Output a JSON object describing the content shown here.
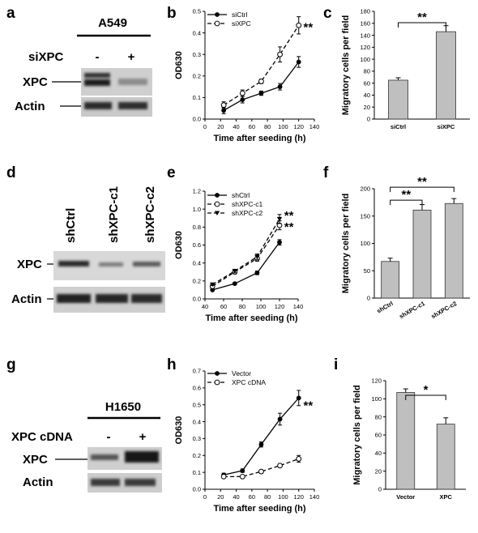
{
  "panels": {
    "a": {
      "letter": "a",
      "cell_line": "A549",
      "treatment_label": "siXPC",
      "lane_marks": [
        "-",
        "+"
      ],
      "blots": [
        "XPC",
        "Actin"
      ]
    },
    "d": {
      "letter": "d",
      "lanes": [
        "shCtrl",
        "shXPC-c1",
        "shXPC-c2"
      ],
      "blots": [
        "XPC",
        "Actin"
      ]
    },
    "g": {
      "letter": "g",
      "cell_line": "H1650",
      "treatment_label": "XPC cDNA",
      "lane_marks": [
        "-",
        "+"
      ],
      "blots": [
        "XPC",
        "Actin"
      ]
    }
  },
  "chart_data": [
    {
      "panel": "b",
      "type": "line",
      "xlabel": "Time after seeding (h)",
      "ylabel": "OD630",
      "xlim": [
        0,
        140
      ],
      "ylim": [
        0,
        0.5
      ],
      "xticks": [
        0,
        20,
        40,
        60,
        80,
        100,
        120,
        140
      ],
      "yticks": [
        0.0,
        0.1,
        0.2,
        0.3,
        0.4,
        0.5
      ],
      "series": [
        {
          "name": "siCtrl",
          "marker": "filled-circle",
          "dash": "solid",
          "x": [
            24,
            48,
            72,
            96,
            120
          ],
          "y": [
            0.04,
            0.09,
            0.12,
            0.15,
            0.265
          ],
          "err": [
            0.015,
            0.015,
            0.01,
            0.015,
            0.025
          ]
        },
        {
          "name": "siXPC",
          "marker": "open-circle",
          "dash": "dashed",
          "x": [
            24,
            48,
            72,
            96,
            120
          ],
          "y": [
            0.065,
            0.12,
            0.175,
            0.3,
            0.435
          ],
          "err": [
            0.015,
            0.015,
            0.01,
            0.035,
            0.04
          ]
        }
      ],
      "annotations": [
        {
          "text": "**",
          "x": 126,
          "y": 0.43
        }
      ]
    },
    {
      "panel": "c",
      "type": "bar",
      "categories": [
        "siCtrl",
        "siXPC"
      ],
      "values": [
        65,
        146
      ],
      "err": [
        4,
        10
      ],
      "ylabel": "Migratory cells per field",
      "ylim": [
        0,
        180
      ],
      "yticks": [
        0,
        20,
        40,
        60,
        80,
        100,
        120,
        140,
        160,
        180
      ],
      "annotations": [
        {
          "text": "**",
          "from": 0,
          "to": 1
        }
      ]
    },
    {
      "panel": "e",
      "type": "line",
      "xlabel": "Time after seeding (h)",
      "ylabel": "OD630",
      "xlim": [
        40,
        140
      ],
      "ylim": [
        0,
        1.2
      ],
      "xticks": [
        40,
        60,
        80,
        100,
        120,
        140
      ],
      "yticks": [
        0.0,
        0.2,
        0.4,
        0.6,
        0.8,
        1.0,
        1.2
      ],
      "series": [
        {
          "name": "shCtrl",
          "marker": "filled-circle",
          "dash": "solid",
          "x": [
            48,
            72,
            96,
            120
          ],
          "y": [
            0.1,
            0.17,
            0.29,
            0.63
          ],
          "err": [
            0.01,
            0.01,
            0.02,
            0.03
          ]
        },
        {
          "name": "shXPC-c1",
          "marker": "open-circle",
          "dash": "dashed",
          "x": [
            48,
            72,
            96,
            120
          ],
          "y": [
            0.14,
            0.3,
            0.45,
            0.82
          ],
          "err": [
            0.01,
            0.02,
            0.03,
            0.05
          ]
        },
        {
          "name": "shXPC-c2",
          "marker": "filled-triangle",
          "dash": "dashed",
          "x": [
            48,
            72,
            96,
            120
          ],
          "y": [
            0.16,
            0.31,
            0.47,
            0.89
          ],
          "err": [
            0.01,
            0.02,
            0.03,
            0.05
          ]
        }
      ],
      "annotations": [
        {
          "text": "**",
          "x": 125,
          "y": 0.94
        },
        {
          "text": "**",
          "x": 125,
          "y": 0.81
        }
      ]
    },
    {
      "panel": "f",
      "type": "bar",
      "categories": [
        "shCtrl",
        "shXPC-c1",
        "shXPC-c2"
      ],
      "values": [
        67,
        161,
        173
      ],
      "err": [
        6,
        10,
        9
      ],
      "ylabel": "Migratory cells per field",
      "ylim": [
        0,
        200
      ],
      "yticks": [
        0,
        50,
        100,
        150,
        200
      ],
      "annotations": [
        {
          "text": "**",
          "from": 0,
          "to": 1
        },
        {
          "text": "**",
          "from": 0,
          "to": 2
        }
      ]
    },
    {
      "panel": "h",
      "type": "line",
      "xlabel": "Time after seeding (h)",
      "ylabel": "OD630",
      "xlim": [
        0,
        140
      ],
      "ylim": [
        0,
        0.7
      ],
      "xticks": [
        0,
        20,
        40,
        60,
        80,
        100,
        120,
        140
      ],
      "yticks": [
        0.0,
        0.1,
        0.2,
        0.3,
        0.4,
        0.5,
        0.6,
        0.7
      ],
      "series": [
        {
          "name": "Vector",
          "marker": "filled-circle",
          "dash": "solid",
          "x": [
            24,
            48,
            72,
            96,
            120
          ],
          "y": [
            0.085,
            0.11,
            0.265,
            0.415,
            0.54
          ],
          "err": [
            0.01,
            0.01,
            0.015,
            0.035,
            0.045
          ]
        },
        {
          "name": "XPC cDNA",
          "marker": "open-circle",
          "dash": "dashed",
          "x": [
            24,
            48,
            72,
            96,
            120
          ],
          "y": [
            0.075,
            0.075,
            0.105,
            0.14,
            0.18
          ],
          "err": [
            0.005,
            0.005,
            0.01,
            0.01,
            0.02
          ]
        }
      ],
      "annotations": [
        {
          "text": "**",
          "x": 126,
          "y": 0.5
        }
      ]
    },
    {
      "panel": "i",
      "type": "bar",
      "categories": [
        "Vector",
        "XPC"
      ],
      "values": [
        107,
        72
      ],
      "err": [
        4,
        7
      ],
      "ylabel": "Migratory cells per field",
      "ylim": [
        0,
        120
      ],
      "yticks": [
        0,
        20,
        40,
        60,
        80,
        100,
        120
      ],
      "annotations": [
        {
          "text": "*",
          "from": 0,
          "to": 1
        }
      ]
    }
  ]
}
